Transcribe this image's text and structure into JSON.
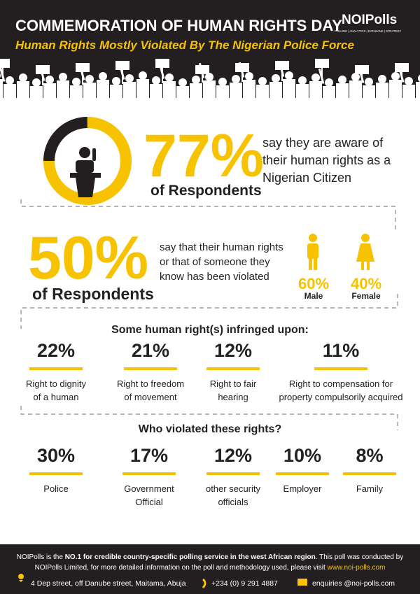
{
  "header": {
    "title": "COMMEMORATION OF HUMAN RIGHTS DAY",
    "subtitle": "Human Rights Mostly Violated By The Nigerian Police Force",
    "logo": "NOIPolls",
    "tagline": "POLLING | ANALYTICS | DATABANK | STRATEGY"
  },
  "aware": {
    "percent": "77%",
    "respondents": "of Respondents",
    "text": [
      "say they are aware of",
      "their human rights as a",
      "Nigerian Citizen"
    ]
  },
  "violated": {
    "percent": "50%",
    "respondents": "of Respondents",
    "text": [
      "say that their human rights",
      "or that of someone they",
      "know has been violated"
    ],
    "gender": [
      {
        "percent": "60%",
        "label": "Male"
      },
      {
        "percent": "40%",
        "label": "Female"
      }
    ]
  },
  "rights": {
    "heading": "Some human right(s) infringed upon:",
    "items": [
      {
        "percent": "22%",
        "label": [
          "Right to dignity",
          "of a human"
        ]
      },
      {
        "percent": "21%",
        "label": [
          "Right to freedom",
          "of movement"
        ]
      },
      {
        "percent": "12%",
        "label": [
          "Right to fair",
          "hearing"
        ]
      },
      {
        "percent": "11%",
        "label": [
          "Right to compensation for",
          "property compulsorily acquired"
        ]
      }
    ]
  },
  "violators": {
    "heading": "Who violated these rights?",
    "items": [
      {
        "percent": "30%",
        "label": [
          "Police"
        ]
      },
      {
        "percent": "17%",
        "label": [
          "Government",
          "Official"
        ]
      },
      {
        "percent": "12%",
        "label": [
          "other security",
          "officials"
        ]
      },
      {
        "percent": "10%",
        "label": [
          "Employer"
        ]
      },
      {
        "percent": "8%",
        "label": [
          "Family"
        ]
      }
    ]
  },
  "footer": {
    "about": [
      "NOIPolls is the ",
      "NO.1 for credible country-specific polling service in the west African region",
      ". This poll was conducted by"
    ],
    "more": [
      "NOIPolls Limited, for more detailed information on the poll and methodology used, please visit ",
      "www.noi-polls.com"
    ],
    "address": "4 Dep street, off Danube street, Maitama, Abuja",
    "phone": "+234 (0) 9 291 4887",
    "email": "enquiries @noi-polls.com"
  }
}
